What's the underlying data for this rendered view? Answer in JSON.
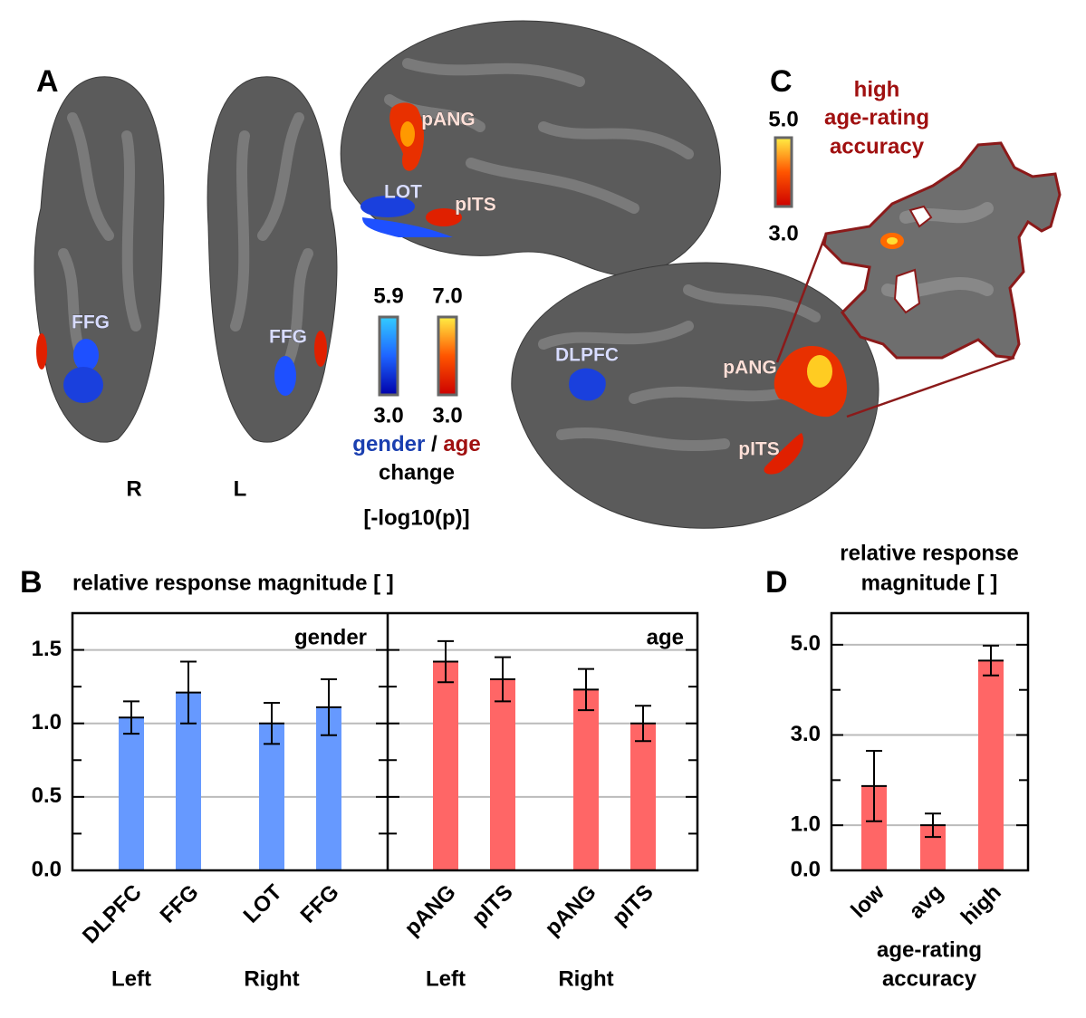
{
  "panel_a": {
    "label": "A",
    "hemispheres": [
      "R",
      "L"
    ],
    "roi_labels": [
      "FFG",
      "FFG"
    ]
  },
  "lateral_top": {
    "roi_labels": [
      "pANG",
      "LOT",
      "pITS"
    ]
  },
  "lateral_bottom": {
    "roi_labels": [
      "DLPFC",
      "pANG",
      "pITS"
    ]
  },
  "colorbar": {
    "gender_max": "5.9",
    "gender_min": "3.0",
    "age_max": "7.0",
    "age_min": "3.0",
    "gender": "gender",
    "separator": "/",
    "age": "age",
    "line2": "change",
    "unit": "[-log10(p)]"
  },
  "panel_c": {
    "label": "C",
    "title_lines": [
      "high",
      "age-rating",
      "accuracy"
    ],
    "colorbar_max": "5.0",
    "colorbar_min": "3.0"
  },
  "chart_data": [
    {
      "type": "bar",
      "panel_label": "B",
      "title": "relative response magnitude [ ]",
      "categories": [
        "DLPFC",
        "FFG",
        "LOT",
        "FFG",
        "pANG",
        "pITS",
        "pANG",
        "pITS"
      ],
      "group_labels": [
        "Left",
        "Right",
        "Left",
        "Right"
      ],
      "series": [
        {
          "name": "gender",
          "color": "#6699ff",
          "values": [
            1.04,
            1.21,
            1.0,
            1.11,
            null,
            null,
            null,
            null
          ],
          "errors": [
            0.11,
            0.21,
            0.14,
            0.19,
            null,
            null,
            null,
            null
          ]
        },
        {
          "name": "age",
          "color": "#ff6666",
          "values": [
            null,
            null,
            null,
            null,
            1.42,
            1.3,
            1.23,
            1.0
          ],
          "errors": [
            null,
            null,
            null,
            null,
            0.14,
            0.15,
            0.14,
            0.12
          ]
        }
      ],
      "ylim": [
        0,
        1.75
      ],
      "yticks": [
        {
          "value": 0,
          "label": "0.0"
        },
        {
          "value": 0.5,
          "label": "0.5"
        },
        {
          "value": 1,
          "label": "1.0"
        },
        {
          "value": 1.5,
          "label": "1.5"
        }
      ],
      "yticks_minor": [
        0.25,
        0.75,
        1.25
      ],
      "grid": true
    },
    {
      "type": "bar",
      "panel_label": "D",
      "title_lines": [
        "relative response",
        "magnitude [ ]"
      ],
      "xlabel_lines": [
        "age-rating",
        "accuracy"
      ],
      "categories": [
        "low",
        "avg",
        "high"
      ],
      "values": [
        1.87,
        1.0,
        4.65
      ],
      "errors": [
        0.78,
        0.26,
        0.33
      ],
      "color": "#ff6666",
      "ylim": [
        0,
        5.7
      ],
      "yticks": [
        {
          "value": 0,
          "label": "0.0"
        },
        {
          "value": 1,
          "label": "1.0"
        },
        {
          "value": 3,
          "label": "3.0"
        },
        {
          "value": 5,
          "label": "5.0"
        }
      ],
      "yticks_minor": [
        2,
        4
      ],
      "grid": true
    }
  ]
}
